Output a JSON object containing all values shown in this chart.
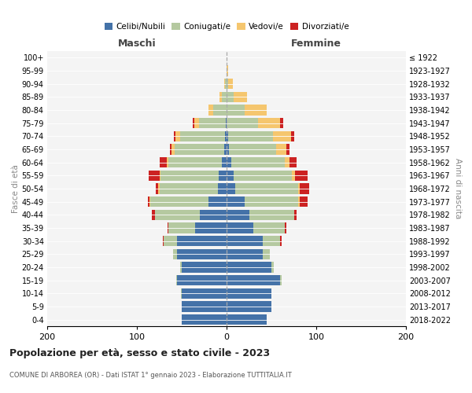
{
  "age_groups": [
    "0-4",
    "5-9",
    "10-14",
    "15-19",
    "20-24",
    "25-29",
    "30-34",
    "35-39",
    "40-44",
    "45-49",
    "50-54",
    "55-59",
    "60-64",
    "65-69",
    "70-74",
    "75-79",
    "80-84",
    "85-89",
    "90-94",
    "95-99",
    "100+"
  ],
  "birth_years": [
    "2018-2022",
    "2013-2017",
    "2008-2012",
    "2003-2007",
    "1998-2002",
    "1993-1997",
    "1988-1992",
    "1983-1987",
    "1978-1982",
    "1973-1977",
    "1968-1972",
    "1963-1967",
    "1958-1962",
    "1953-1957",
    "1948-1952",
    "1943-1947",
    "1938-1942",
    "1933-1937",
    "1928-1932",
    "1923-1927",
    "≤ 1922"
  ],
  "maschi": {
    "celibi": [
      50,
      50,
      50,
      55,
      50,
      55,
      55,
      35,
      30,
      20,
      10,
      9,
      5,
      3,
      2,
      1,
      0,
      0,
      0,
      0,
      0
    ],
    "coniugati": [
      0,
      0,
      1,
      1,
      2,
      5,
      15,
      30,
      50,
      65,
      65,
      65,
      60,
      55,
      50,
      30,
      15,
      5,
      2,
      0,
      0
    ],
    "vedovi": [
      0,
      0,
      0,
      0,
      0,
      0,
      0,
      0,
      0,
      1,
      1,
      1,
      2,
      3,
      5,
      5,
      5,
      3,
      1,
      0,
      0
    ],
    "divorziati": [
      0,
      0,
      0,
      0,
      0,
      0,
      1,
      1,
      3,
      2,
      3,
      12,
      8,
      2,
      2,
      2,
      0,
      0,
      0,
      0,
      0
    ]
  },
  "femmine": {
    "nubili": [
      45,
      50,
      50,
      60,
      50,
      40,
      40,
      30,
      25,
      20,
      10,
      8,
      5,
      3,
      2,
      0,
      0,
      0,
      0,
      0,
      0
    ],
    "coniugate": [
      0,
      0,
      0,
      1,
      3,
      8,
      20,
      35,
      50,
      60,
      70,
      65,
      60,
      52,
      50,
      35,
      20,
      8,
      2,
      0,
      0
    ],
    "vedove": [
      0,
      0,
      0,
      0,
      0,
      0,
      0,
      0,
      0,
      2,
      2,
      3,
      5,
      12,
      20,
      25,
      25,
      15,
      5,
      2,
      0
    ],
    "divorziate": [
      0,
      0,
      0,
      0,
      0,
      0,
      1,
      2,
      3,
      8,
      10,
      14,
      8,
      3,
      3,
      3,
      0,
      0,
      0,
      0,
      0
    ]
  },
  "colors": {
    "celibi": "#4472a8",
    "coniugati": "#b5c9a0",
    "vedovi": "#f5c66e",
    "divorziati": "#cc2222"
  },
  "xlim": 200,
  "title": "Popolazione per età, sesso e stato civile - 2023",
  "subtitle": "COMUNE DI ARBOREA (OR) - Dati ISTAT 1° gennaio 2023 - Elaborazione TUTTITALIA.IT",
  "ylabel": "Fasce di età",
  "ylabel_right": "Anni di nascita",
  "label_maschi": "Maschi",
  "label_femmine": "Femmine",
  "bg_color": "#f4f4f4",
  "fig_bg": "#ffffff"
}
